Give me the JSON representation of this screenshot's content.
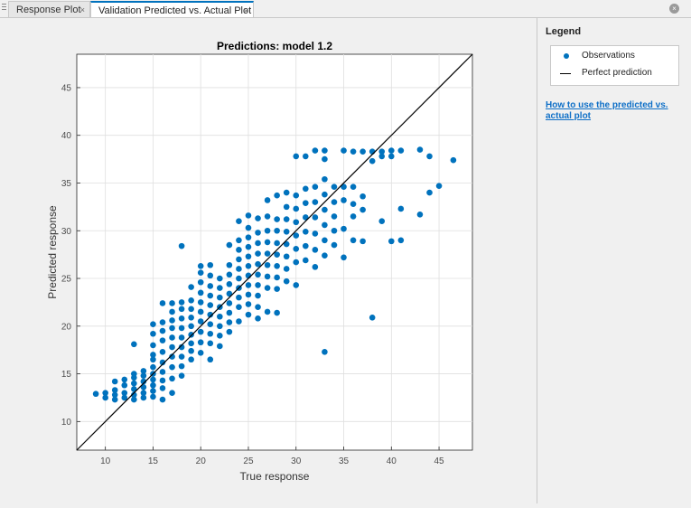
{
  "tabs": [
    {
      "label": "Response Plot",
      "close": "×"
    },
    {
      "label": "Validation Predicted vs. Actual Plot",
      "close": "×"
    }
  ],
  "window_close": "×",
  "legend_panel": {
    "title": "Legend",
    "items": [
      {
        "label": "Observations",
        "symbol": "dot"
      },
      {
        "label": "Perfect prediction",
        "symbol": "line"
      }
    ],
    "help_link": "How to use the predicted vs. actual plot"
  },
  "colors": {
    "points": "#0072bd",
    "line": "#000000",
    "active_tab": "#0072bd"
  },
  "chart_data": {
    "type": "scatter",
    "title": "Predictions: model 1.2",
    "xlabel": "True response",
    "ylabel": "Predicted response",
    "xlim": [
      7,
      48.5
    ],
    "ylim": [
      7,
      48.5
    ],
    "xticks": [
      10,
      15,
      20,
      25,
      30,
      35,
      40,
      45
    ],
    "yticks": [
      10,
      15,
      20,
      25,
      30,
      35,
      40,
      45
    ],
    "grid": true,
    "reference_line": {
      "name": "Perfect prediction",
      "from": [
        7,
        7
      ],
      "to": [
        48.5,
        48.5
      ]
    },
    "points": [
      [
        9,
        12.9
      ],
      [
        10,
        12.5
      ],
      [
        10,
        13
      ],
      [
        11,
        12.3
      ],
      [
        11,
        12.8
      ],
      [
        11,
        13.3
      ],
      [
        11,
        14.2
      ],
      [
        12,
        12.5
      ],
      [
        12,
        13
      ],
      [
        12,
        13.8
      ],
      [
        12,
        14.4
      ],
      [
        13,
        12.3
      ],
      [
        13,
        12.8
      ],
      [
        13,
        13.4
      ],
      [
        13,
        14
      ],
      [
        13,
        14.6
      ],
      [
        13,
        15
      ],
      [
        13,
        18.1
      ],
      [
        14,
        12.5
      ],
      [
        14,
        13
      ],
      [
        14,
        13.6
      ],
      [
        14,
        14.2
      ],
      [
        14,
        14.8
      ],
      [
        14,
        15.3
      ],
      [
        15,
        12.6
      ],
      [
        15,
        13.2
      ],
      [
        15,
        13.8
      ],
      [
        15,
        14.4
      ],
      [
        15,
        15
      ],
      [
        15,
        15.7
      ],
      [
        15,
        16.5
      ],
      [
        15,
        17
      ],
      [
        15,
        18
      ],
      [
        15,
        19.2
      ],
      [
        15,
        20.2
      ],
      [
        16,
        12.3
      ],
      [
        16,
        13.5
      ],
      [
        16,
        14.3
      ],
      [
        16,
        15.2
      ],
      [
        16,
        16.2
      ],
      [
        16,
        17.3
      ],
      [
        16,
        18.5
      ],
      [
        16,
        19.5
      ],
      [
        16,
        20.4
      ],
      [
        16,
        22.4
      ],
      [
        17,
        13
      ],
      [
        17,
        14.5
      ],
      [
        17,
        15.7
      ],
      [
        17,
        16.8
      ],
      [
        17,
        17.8
      ],
      [
        17,
        18.8
      ],
      [
        17,
        19.8
      ],
      [
        17,
        20.6
      ],
      [
        17,
        21.5
      ],
      [
        17,
        22.4
      ],
      [
        18,
        14.8
      ],
      [
        18,
        15.8
      ],
      [
        18,
        16.8
      ],
      [
        18,
        17.8
      ],
      [
        18,
        18.8
      ],
      [
        18,
        19.8
      ],
      [
        18,
        20.8
      ],
      [
        18,
        21.8
      ],
      [
        18,
        22.5
      ],
      [
        18,
        28.4
      ],
      [
        19,
        16.5
      ],
      [
        19,
        17.4
      ],
      [
        19,
        18.2
      ],
      [
        19,
        19.1
      ],
      [
        19,
        20
      ],
      [
        19,
        20.9
      ],
      [
        19,
        21.8
      ],
      [
        19,
        22.7
      ],
      [
        19,
        24.1
      ],
      [
        20,
        17.2
      ],
      [
        20,
        18.3
      ],
      [
        20,
        19.4
      ],
      [
        20,
        20.5
      ],
      [
        20,
        21.5
      ],
      [
        20,
        22.5
      ],
      [
        20,
        23.5
      ],
      [
        20,
        24.6
      ],
      [
        20,
        25.6
      ],
      [
        20,
        26.3
      ],
      [
        21,
        16.5
      ],
      [
        21,
        18.2
      ],
      [
        21,
        19.2
      ],
      [
        21,
        20.2
      ],
      [
        21,
        21.2
      ],
      [
        21,
        22.2
      ],
      [
        21,
        23.2
      ],
      [
        21,
        24.2
      ],
      [
        21,
        25.3
      ],
      [
        21,
        26.4
      ],
      [
        22,
        17.9
      ],
      [
        22,
        19
      ],
      [
        22,
        20
      ],
      [
        22,
        21
      ],
      [
        22,
        22
      ],
      [
        22,
        23
      ],
      [
        22,
        24
      ],
      [
        22,
        25
      ],
      [
        23,
        19.4
      ],
      [
        23,
        20.4
      ],
      [
        23,
        21.4
      ],
      [
        23,
        22.4
      ],
      [
        23,
        23.4
      ],
      [
        23,
        24.4
      ],
      [
        23,
        25.4
      ],
      [
        23,
        26.4
      ],
      [
        23,
        28.5
      ],
      [
        24,
        20.5
      ],
      [
        24,
        22
      ],
      [
        24,
        23
      ],
      [
        24,
        24
      ],
      [
        24,
        25
      ],
      [
        24,
        26
      ],
      [
        24,
        27
      ],
      [
        24,
        28
      ],
      [
        24,
        29
      ],
      [
        24,
        31
      ],
      [
        25,
        21.2
      ],
      [
        25,
        22.3
      ],
      [
        25,
        23.3
      ],
      [
        25,
        24.3
      ],
      [
        25,
        25.3
      ],
      [
        25,
        26.3
      ],
      [
        25,
        27.3
      ],
      [
        25,
        28.3
      ],
      [
        25,
        29.3
      ],
      [
        25,
        30.3
      ],
      [
        25,
        31.6
      ],
      [
        26,
        20.8
      ],
      [
        26,
        22
      ],
      [
        26,
        23.2
      ],
      [
        26,
        24.3
      ],
      [
        26,
        25.4
      ],
      [
        26,
        26.5
      ],
      [
        26,
        27.6
      ],
      [
        26,
        28.7
      ],
      [
        26,
        29.8
      ],
      [
        26,
        31.3
      ],
      [
        27,
        21.5
      ],
      [
        27,
        24
      ],
      [
        27,
        25.2
      ],
      [
        27,
        26.4
      ],
      [
        27,
        27.6
      ],
      [
        27,
        28.8
      ],
      [
        27,
        30
      ],
      [
        27,
        31.5
      ],
      [
        27,
        33.2
      ],
      [
        28,
        21.4
      ],
      [
        28,
        23.9
      ],
      [
        28,
        25.1
      ],
      [
        28,
        26.3
      ],
      [
        28,
        27.5
      ],
      [
        28,
        28.7
      ],
      [
        28,
        30
      ],
      [
        28,
        31.2
      ],
      [
        28,
        33.7
      ],
      [
        29,
        24.7
      ],
      [
        29,
        26
      ],
      [
        29,
        27.3
      ],
      [
        29,
        28.6
      ],
      [
        29,
        29.9
      ],
      [
        29,
        31.2
      ],
      [
        29,
        32.5
      ],
      [
        29,
        34
      ],
      [
        30,
        24.3
      ],
      [
        30,
        26.7
      ],
      [
        30,
        28.1
      ],
      [
        30,
        29.5
      ],
      [
        30,
        30.9
      ],
      [
        30,
        32.3
      ],
      [
        30,
        33.7
      ],
      [
        30,
        37.8
      ],
      [
        31,
        26.9
      ],
      [
        31,
        28.4
      ],
      [
        31,
        29.9
      ],
      [
        31,
        31.4
      ],
      [
        31,
        32.9
      ],
      [
        31,
        34.4
      ],
      [
        31,
        37.8
      ],
      [
        32,
        26.2
      ],
      [
        32,
        28
      ],
      [
        32,
        29.7
      ],
      [
        32,
        31.4
      ],
      [
        32,
        33
      ],
      [
        32,
        34.6
      ],
      [
        32,
        38.4
      ],
      [
        33,
        17.3
      ],
      [
        33,
        27.4
      ],
      [
        33,
        29
      ],
      [
        33,
        30.6
      ],
      [
        33,
        32.2
      ],
      [
        33,
        33.8
      ],
      [
        33,
        35.4
      ],
      [
        33,
        37.5
      ],
      [
        33,
        38.4
      ],
      [
        34,
        28.5
      ],
      [
        34,
        30
      ],
      [
        34,
        31.5
      ],
      [
        34,
        33
      ],
      [
        34,
        34.6
      ],
      [
        35,
        27.2
      ],
      [
        35,
        30.2
      ],
      [
        35,
        33.2
      ],
      [
        35,
        34.6
      ],
      [
        35,
        38.4
      ],
      [
        36,
        29
      ],
      [
        36,
        31.5
      ],
      [
        36,
        32.8
      ],
      [
        36,
        34.6
      ],
      [
        36,
        38.3
      ],
      [
        37,
        28.9
      ],
      [
        37,
        32.2
      ],
      [
        37,
        33.6
      ],
      [
        37,
        38.3
      ],
      [
        38,
        20.9
      ],
      [
        38,
        37.3
      ],
      [
        38,
        38.3
      ],
      [
        39,
        31
      ],
      [
        39,
        37.8
      ],
      [
        39,
        38.3
      ],
      [
        40,
        28.9
      ],
      [
        40,
        37.8
      ],
      [
        40,
        38.4
      ],
      [
        41,
        29
      ],
      [
        41,
        32.3
      ],
      [
        41,
        38.4
      ],
      [
        43,
        31.7
      ],
      [
        43,
        38.5
      ],
      [
        44,
        34
      ],
      [
        44,
        37.8
      ],
      [
        45,
        34.7
      ],
      [
        46.5,
        37.4
      ]
    ]
  }
}
